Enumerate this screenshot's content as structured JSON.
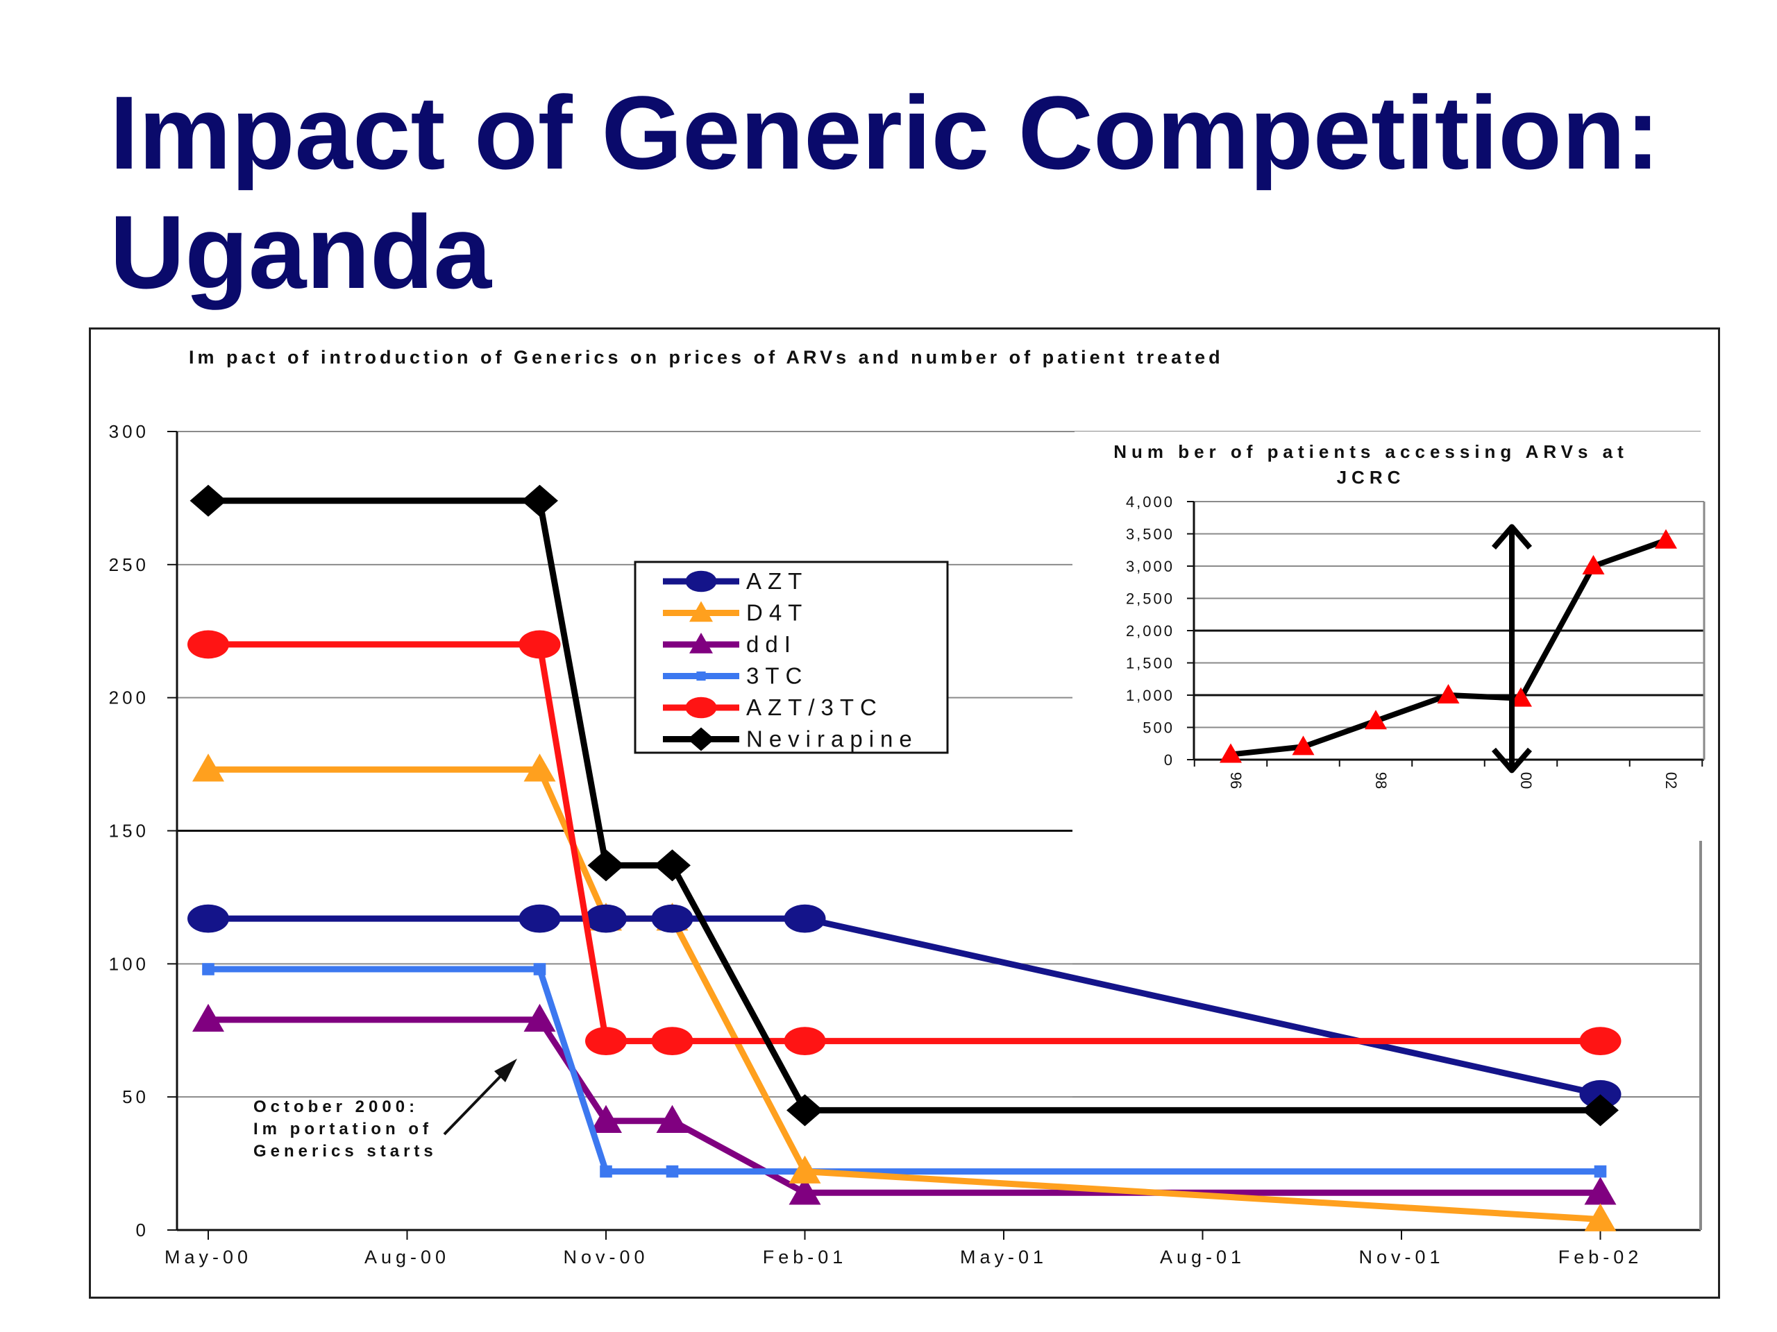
{
  "slide": {
    "title_line1": "Impact of Generic Competition:",
    "title_line2": "Uganda"
  },
  "chart_data": [
    {
      "type": "line",
      "title": "Im pact of introduction of Generics on prices of ARVs and number of patient treated",
      "xlabel": "",
      "ylabel": "",
      "ylim": [
        0,
        300
      ],
      "y_ticks": [
        0,
        50,
        100,
        150,
        200,
        250,
        300
      ],
      "y_tick_labels": [
        "0",
        "50",
        "100",
        "150",
        "200",
        "250",
        "300"
      ],
      "x_tick_labels": [
        "May-00",
        "Aug-00",
        "Nov-00",
        "Feb-01",
        "May-01",
        "Aug-01",
        "Nov-01",
        "Feb-02"
      ],
      "grid": true,
      "legend_position": "center-top",
      "series": [
        {
          "name": "AZT",
          "color": "#14148a",
          "marker": "circle",
          "points": [
            [
              "May-00",
              117
            ],
            [
              "Oct-00",
              117
            ],
            [
              "Nov-00",
              117
            ],
            [
              "Dec-00",
              117
            ],
            [
              "Feb-01",
              117
            ],
            [
              "Feb-02",
              51
            ]
          ]
        },
        {
          "name": "D4T",
          "color": "#ffa01e",
          "marker": "triangle",
          "points": [
            [
              "May-00",
              173
            ],
            [
              "Oct-00",
              173
            ],
            [
              "Nov-00",
              117
            ],
            [
              "Dec-00",
              117
            ],
            [
              "Feb-01",
              22
            ],
            [
              "Feb-02",
              4
            ]
          ]
        },
        {
          "name": "ddI",
          "color": "#800080",
          "marker": "triangle",
          "points": [
            [
              "May-00",
              79
            ],
            [
              "Oct-00",
              79
            ],
            [
              "Nov-00",
              41
            ],
            [
              "Dec-00",
              41
            ],
            [
              "Feb-01",
              14
            ],
            [
              "Feb-02",
              14
            ]
          ]
        },
        {
          "name": "3TC",
          "color": "#3c78f0",
          "marker": "square",
          "points": [
            [
              "May-00",
              98
            ],
            [
              "Oct-00",
              98
            ],
            [
              "Nov-00",
              22
            ],
            [
              "Dec-00",
              22
            ],
            [
              "Feb-01",
              22
            ],
            [
              "Feb-02",
              22
            ]
          ]
        },
        {
          "name": "AZT/3TC",
          "color": "#ff1414",
          "marker": "circle",
          "points": [
            [
              "May-00",
              220
            ],
            [
              "Oct-00",
              220
            ],
            [
              "Nov-00",
              71
            ],
            [
              "Dec-00",
              71
            ],
            [
              "Feb-01",
              71
            ],
            [
              "Feb-02",
              71
            ]
          ]
        },
        {
          "name": "Nevirapine",
          "color": "#000000",
          "marker": "diamond",
          "points": [
            [
              "May-00",
              274
            ],
            [
              "Oct-00",
              274
            ],
            [
              "Nov-00",
              137
            ],
            [
              "Dec-00",
              137
            ],
            [
              "Feb-01",
              45
            ],
            [
              "Feb-02",
              45
            ]
          ]
        }
      ],
      "annotation": {
        "line1": "October 2000:",
        "line2": "Im portation of",
        "line3": "Generics starts",
        "points_to": "Oct-00"
      }
    },
    {
      "type": "line",
      "title": "Num ber of patients accessing ARVs at JCRC",
      "title_line1": "Num ber of patients accessing ARVs at",
      "title_line2": "JCRC",
      "ylim": [
        0,
        4000
      ],
      "y_ticks": [
        0,
        500,
        1000,
        1500,
        2000,
        2500,
        3000,
        3500,
        4000
      ],
      "y_tick_labels": [
        "0",
        "500",
        "1,000",
        "1,500",
        "2,000",
        "2,500",
        "3,000",
        "3,500",
        "4,000"
      ],
      "x_tick_labels": [
        "96",
        "98",
        "00",
        "02"
      ],
      "grid": true,
      "series": [
        {
          "name": "",
          "line_color": "#000000",
          "marker_color": "#ff0000",
          "marker": "triangle",
          "x": [
            1996,
            1997,
            1998,
            1999,
            2000,
            2001,
            2002
          ],
          "values": [
            80,
            200,
            600,
            1000,
            950,
            3000,
            3400
          ]
        }
      ],
      "annotation": {
        "type": "double-arrow",
        "at_x": 2000,
        "range": [
          50,
          3500
        ]
      }
    }
  ]
}
